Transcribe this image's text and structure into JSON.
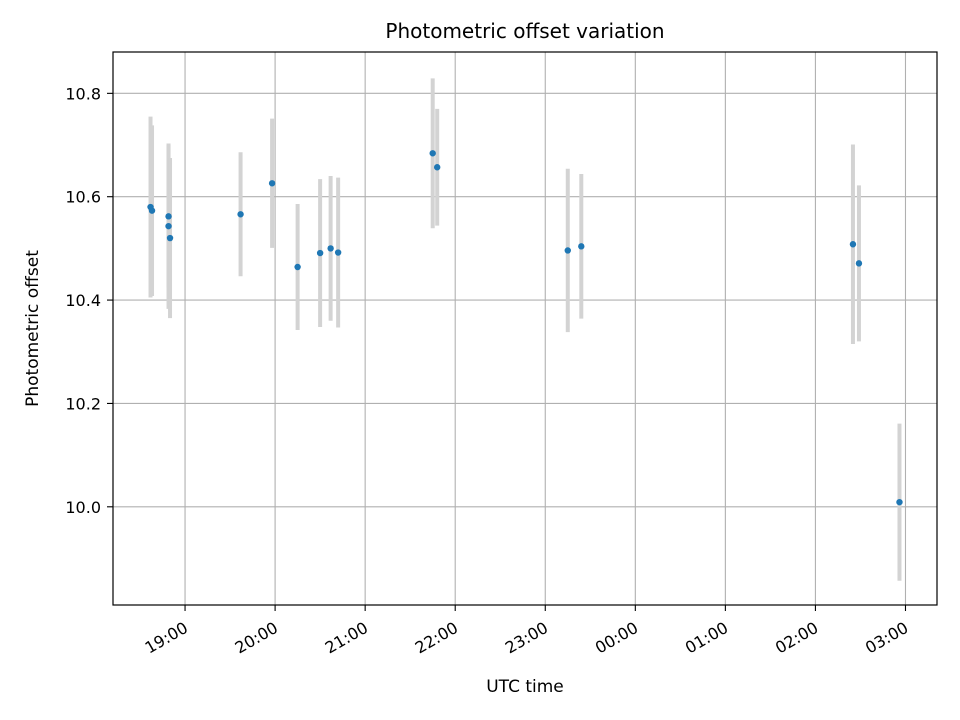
{
  "chart_data": {
    "type": "scatter",
    "title": "Photometric offset variation",
    "xlabel": "UTC time",
    "ylabel": "Photometric offset",
    "x_axis_type": "time",
    "xlim": [
      "18:12",
      "03:21"
    ],
    "ylim": [
      9.81,
      10.88
    ],
    "grid": true,
    "x_ticks": [
      "19:00",
      "20:00",
      "21:00",
      "22:00",
      "23:00",
      "00:00",
      "01:00",
      "02:00",
      "03:00"
    ],
    "y_ticks": [
      "10.0",
      "10.2",
      "10.4",
      "10.6",
      "10.8"
    ],
    "y_tick_values": [
      10.0,
      10.2,
      10.4,
      10.6,
      10.8
    ],
    "point_color": "#1f77b4",
    "errorbar_color": "#d3d3d3",
    "series": [
      {
        "points": [
          {
            "x": "18:37",
            "y": 10.58,
            "err": 0.175
          },
          {
            "x": "18:38",
            "y": 10.573,
            "err": 0.165
          },
          {
            "x": "18:49",
            "y": 10.562,
            "err": 0.138
          },
          {
            "x": "18:49",
            "y": 10.543,
            "err": 0.16
          },
          {
            "x": "18:50",
            "y": 10.52,
            "err": 0.155
          },
          {
            "x": "19:37",
            "y": 10.566,
            "err": 0.12
          },
          {
            "x": "19:58",
            "y": 10.626,
            "err": 0.125
          },
          {
            "x": "20:15",
            "y": 10.464,
            "err": 0.122
          },
          {
            "x": "20:30",
            "y": 10.491,
            "err": 0.143
          },
          {
            "x": "20:37",
            "y": 10.5,
            "err": 0.14
          },
          {
            "x": "20:42",
            "y": 10.492,
            "err": 0.145
          },
          {
            "x": "21:45",
            "y": 10.684,
            "err": 0.145
          },
          {
            "x": "21:48",
            "y": 10.657,
            "err": 0.113
          },
          {
            "x": "23:15",
            "y": 10.496,
            "err": 0.158
          },
          {
            "x": "23:24",
            "y": 10.504,
            "err": 0.14
          },
          {
            "x": "02:25",
            "y": 10.508,
            "err": 0.193
          },
          {
            "x": "02:29",
            "y": 10.471,
            "err": 0.151
          },
          {
            "x": "02:56",
            "y": 10.009,
            "err": 0.152
          }
        ]
      }
    ]
  }
}
